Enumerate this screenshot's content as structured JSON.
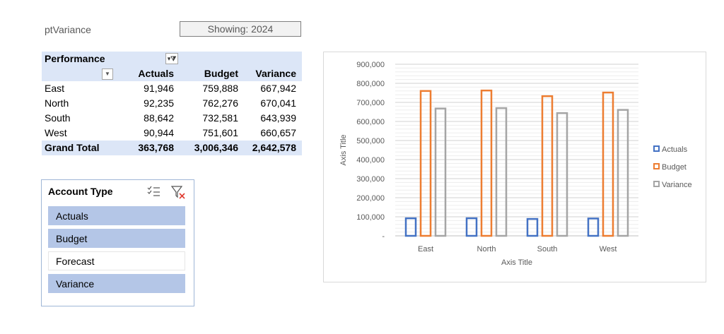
{
  "header": {
    "pivot_name": "ptVariance",
    "showing": "Showing: 2024"
  },
  "pivot": {
    "title": "Performance",
    "columns": [
      "Actuals",
      "Budget",
      "Variance"
    ],
    "rows": [
      {
        "label": "East",
        "values": [
          "91,946",
          "759,888",
          "667,942"
        ]
      },
      {
        "label": "North",
        "values": [
          "92,235",
          "762,276",
          "670,041"
        ]
      },
      {
        "label": "South",
        "values": [
          "88,642",
          "732,581",
          "643,939"
        ]
      },
      {
        "label": "West",
        "values": [
          "90,944",
          "751,601",
          "660,657"
        ]
      }
    ],
    "total": {
      "label": "Grand Total",
      "values": [
        "363,768",
        "3,006,346",
        "2,642,578"
      ]
    }
  },
  "slicer": {
    "title": "Account Type",
    "items": [
      {
        "label": "Actuals",
        "selected": true
      },
      {
        "label": "Budget",
        "selected": true
      },
      {
        "label": "Forecast",
        "selected": false
      },
      {
        "label": "Variance",
        "selected": true
      }
    ]
  },
  "chart_data": {
    "type": "bar",
    "categories": [
      "East",
      "North",
      "South",
      "West"
    ],
    "series": [
      {
        "name": "Actuals",
        "values": [
          91946,
          92235,
          88642,
          90944
        ],
        "color": "#4472c4"
      },
      {
        "name": "Budget",
        "values": [
          759888,
          762276,
          732581,
          751601
        ],
        "color": "#ed7d31"
      },
      {
        "name": "Variance",
        "values": [
          667942,
          670041,
          643939,
          660657
        ],
        "color": "#a5a5a5"
      }
    ],
    "xlabel": "Axis Title",
    "ylabel": "Axis Title",
    "ylim": [
      0,
      900000
    ],
    "yticks": [
      "-",
      "100,000",
      "200,000",
      "300,000",
      "400,000",
      "500,000",
      "600,000",
      "700,000",
      "800,000",
      "900,000"
    ],
    "grid": true,
    "legend": "right"
  }
}
